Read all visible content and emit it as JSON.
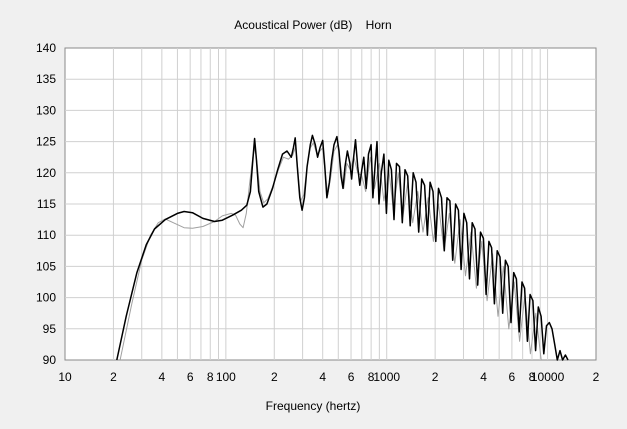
{
  "chart_data": {
    "type": "line",
    "title": "Acoustical Power (dB)    Horn",
    "xlabel": "Frequency (hertz)",
    "ylabel": "",
    "x_scale": "log",
    "xlim": [
      10,
      20000
    ],
    "ylim": [
      90,
      140
    ],
    "y_ticks": [
      90,
      95,
      100,
      105,
      110,
      115,
      120,
      125,
      130,
      135,
      140
    ],
    "x_ticks": [
      {
        "value": 10,
        "label": "10"
      },
      {
        "value": 20,
        "label": "2"
      },
      {
        "value": 40,
        "label": "4"
      },
      {
        "value": 60,
        "label": "6"
      },
      {
        "value": 80,
        "label": "8"
      },
      {
        "value": 100,
        "label": "100"
      },
      {
        "value": 200,
        "label": "2"
      },
      {
        "value": 400,
        "label": "4"
      },
      {
        "value": 600,
        "label": "6"
      },
      {
        "value": 800,
        "label": "8"
      },
      {
        "value": 1000,
        "label": "1000"
      },
      {
        "value": 2000,
        "label": "2"
      },
      {
        "value": 4000,
        "label": "4"
      },
      {
        "value": 6000,
        "label": "6"
      },
      {
        "value": 8000,
        "label": "8"
      },
      {
        "value": 10000,
        "label": "10000"
      },
      {
        "value": 20000,
        "label": "2"
      }
    ],
    "grid": true,
    "colors": {
      "series_main": "#000000",
      "series_reference": "#a0a0a0",
      "plot_background": "#ffffff",
      "grid": "#d0d0d0"
    },
    "series": [
      {
        "values": [
          [
            21,
            90
          ],
          [
            24,
            97
          ],
          [
            28,
            104
          ],
          [
            32,
            108.5
          ],
          [
            36,
            111
          ],
          [
            42,
            112.5
          ],
          [
            50,
            113.5
          ],
          [
            55,
            113.8
          ],
          [
            62,
            113.6
          ],
          [
            72,
            112.7
          ],
          [
            85,
            112.2
          ],
          [
            95,
            112.4
          ],
          [
            110,
            113.2
          ],
          [
            125,
            114
          ],
          [
            135,
            114.8
          ],
          [
            142,
            117
          ],
          [
            147,
            122
          ],
          [
            151,
            125.5
          ],
          [
            155,
            122
          ],
          [
            160,
            117
          ],
          [
            170,
            114.5
          ],
          [
            180,
            115
          ],
          [
            195,
            117.5
          ],
          [
            210,
            120.5
          ],
          [
            225,
            123
          ],
          [
            240,
            123.5
          ],
          [
            255,
            122.5
          ],
          [
            263,
            124
          ],
          [
            270,
            125.6
          ],
          [
            278,
            121
          ],
          [
            288,
            116
          ],
          [
            298,
            114
          ],
          [
            308,
            116
          ],
          [
            320,
            121
          ],
          [
            335,
            124.5
          ],
          [
            345,
            126
          ],
          [
            360,
            124.5
          ],
          [
            372,
            122.5
          ],
          [
            385,
            124
          ],
          [
            400,
            125.2
          ],
          [
            412,
            121
          ],
          [
            425,
            116
          ],
          [
            440,
            118.5
          ],
          [
            455,
            122
          ],
          [
            470,
            124.5
          ],
          [
            490,
            125.8
          ],
          [
            505,
            123.5
          ],
          [
            520,
            119.5
          ],
          [
            535,
            117.5
          ],
          [
            550,
            121
          ],
          [
            570,
            123.5
          ],
          [
            590,
            121.5
          ],
          [
            605,
            119
          ],
          [
            620,
            122
          ],
          [
            640,
            125.3
          ],
          [
            660,
            121
          ],
          [
            680,
            118
          ],
          [
            700,
            120.5
          ],
          [
            720,
            122.5
          ],
          [
            745,
            117.5
          ],
          [
            770,
            123
          ],
          [
            800,
            124.5
          ],
          [
            820,
            116
          ],
          [
            845,
            121
          ],
          [
            870,
            125
          ],
          [
            895,
            115
          ],
          [
            925,
            120
          ],
          [
            960,
            123
          ],
          [
            995,
            113.5
          ],
          [
            1030,
            122
          ],
          [
            1070,
            120.5
          ],
          [
            1110,
            112.5
          ],
          [
            1150,
            121.5
          ],
          [
            1200,
            121
          ],
          [
            1250,
            112
          ],
          [
            1300,
            120.5
          ],
          [
            1350,
            119.5
          ],
          [
            1400,
            111.5
          ],
          [
            1460,
            120
          ],
          [
            1520,
            118.5
          ],
          [
            1580,
            110.5
          ],
          [
            1650,
            119
          ],
          [
            1720,
            118
          ],
          [
            1790,
            110
          ],
          [
            1860,
            118.5
          ],
          [
            1940,
            117
          ],
          [
            2020,
            109
          ],
          [
            2100,
            117.5
          ],
          [
            2190,
            116
          ],
          [
            2280,
            107.5
          ],
          [
            2370,
            116
          ],
          [
            2470,
            115.5
          ],
          [
            2570,
            106
          ],
          [
            2680,
            115
          ],
          [
            2790,
            114
          ],
          [
            2900,
            104.5
          ],
          [
            3020,
            113.5
          ],
          [
            3140,
            112
          ],
          [
            3270,
            103
          ],
          [
            3400,
            112
          ],
          [
            3540,
            111
          ],
          [
            3680,
            102
          ],
          [
            3830,
            110.5
          ],
          [
            3990,
            109.5
          ],
          [
            4150,
            100.5
          ],
          [
            4320,
            109
          ],
          [
            4490,
            108
          ],
          [
            4670,
            99
          ],
          [
            4860,
            107.5
          ],
          [
            5060,
            106.5
          ],
          [
            5260,
            97.5
          ],
          [
            5470,
            106
          ],
          [
            5690,
            105
          ],
          [
            5920,
            96
          ],
          [
            6160,
            104
          ],
          [
            6400,
            103
          ],
          [
            6660,
            94.5
          ],
          [
            6930,
            102.5
          ],
          [
            7200,
            101.5
          ],
          [
            7490,
            93
          ],
          [
            7790,
            100.5
          ],
          [
            8100,
            99.5
          ],
          [
            8420,
            91.5
          ],
          [
            8760,
            98.5
          ],
          [
            9110,
            97
          ],
          [
            9480,
            91
          ],
          [
            9850,
            95.5
          ],
          [
            10250,
            96
          ],
          [
            10660,
            95
          ],
          [
            11080,
            92.5
          ],
          [
            11500,
            90
          ],
          [
            11950,
            91.5
          ],
          [
            12400,
            90
          ],
          [
            12900,
            90.8
          ],
          [
            13400,
            90
          ]
        ]
      },
      {
        "values": [
          [
            22,
            90
          ],
          [
            26,
            99
          ],
          [
            30,
            106
          ],
          [
            34,
            110
          ],
          [
            38,
            112
          ],
          [
            42,
            112.6
          ],
          [
            48,
            111.9
          ],
          [
            55,
            111.2
          ],
          [
            62,
            111.1
          ],
          [
            72,
            111.4
          ],
          [
            85,
            112.2
          ],
          [
            95,
            113.1
          ],
          [
            108,
            113.5
          ],
          [
            115,
            113.2
          ],
          [
            122,
            111.8
          ],
          [
            128,
            111.2
          ],
          [
            134,
            113.5
          ],
          [
            140,
            118
          ],
          [
            147,
            122.5
          ],
          [
            152,
            124
          ],
          [
            157,
            121
          ],
          [
            163,
            117
          ],
          [
            172,
            115.2
          ],
          [
            182,
            115.8
          ],
          [
            197,
            118
          ],
          [
            212,
            120.5
          ],
          [
            228,
            122.5
          ],
          [
            245,
            122.2
          ],
          [
            260,
            122.8
          ],
          [
            272,
            124.2
          ],
          [
            282,
            119.5
          ],
          [
            292,
            115.5
          ],
          [
            305,
            116.5
          ],
          [
            320,
            121
          ],
          [
            335,
            124
          ],
          [
            350,
            124.8
          ],
          [
            368,
            123
          ],
          [
            385,
            123.5
          ],
          [
            400,
            124
          ],
          [
            415,
            120
          ],
          [
            430,
            116.5
          ],
          [
            450,
            119.5
          ],
          [
            470,
            123.5
          ],
          [
            495,
            124.5
          ],
          [
            515,
            121.5
          ],
          [
            540,
            117.5
          ],
          [
            565,
            121.5
          ],
          [
            595,
            120.5
          ],
          [
            625,
            122.5
          ],
          [
            660,
            120
          ],
          [
            700,
            119.5
          ],
          [
            740,
            117
          ],
          [
            790,
            122.5
          ],
          [
            840,
            117.5
          ],
          [
            900,
            121.5
          ],
          [
            960,
            115.5
          ],
          [
            1030,
            120.5
          ],
          [
            1100,
            114
          ],
          [
            1180,
            120
          ],
          [
            1260,
            113
          ],
          [
            1350,
            118.5
          ],
          [
            1450,
            112
          ],
          [
            1560,
            117
          ],
          [
            1680,
            110.5
          ],
          [
            1810,
            116
          ],
          [
            1950,
            109
          ],
          [
            2100,
            115
          ],
          [
            2270,
            107.5
          ],
          [
            2450,
            113.5
          ],
          [
            2650,
            105.5
          ],
          [
            2860,
            112.5
          ],
          [
            3090,
            103.5
          ],
          [
            3340,
            110.5
          ],
          [
            3610,
            101.5
          ],
          [
            3900,
            109
          ],
          [
            4210,
            99.5
          ],
          [
            4550,
            107
          ],
          [
            4920,
            97
          ],
          [
            5310,
            105
          ],
          [
            5740,
            95
          ],
          [
            6200,
            102.5
          ],
          [
            6700,
            93
          ],
          [
            7240,
            100.5
          ],
          [
            7820,
            91
          ],
          [
            8450,
            97.5
          ],
          [
            9130,
            90
          ]
        ]
      }
    ]
  }
}
